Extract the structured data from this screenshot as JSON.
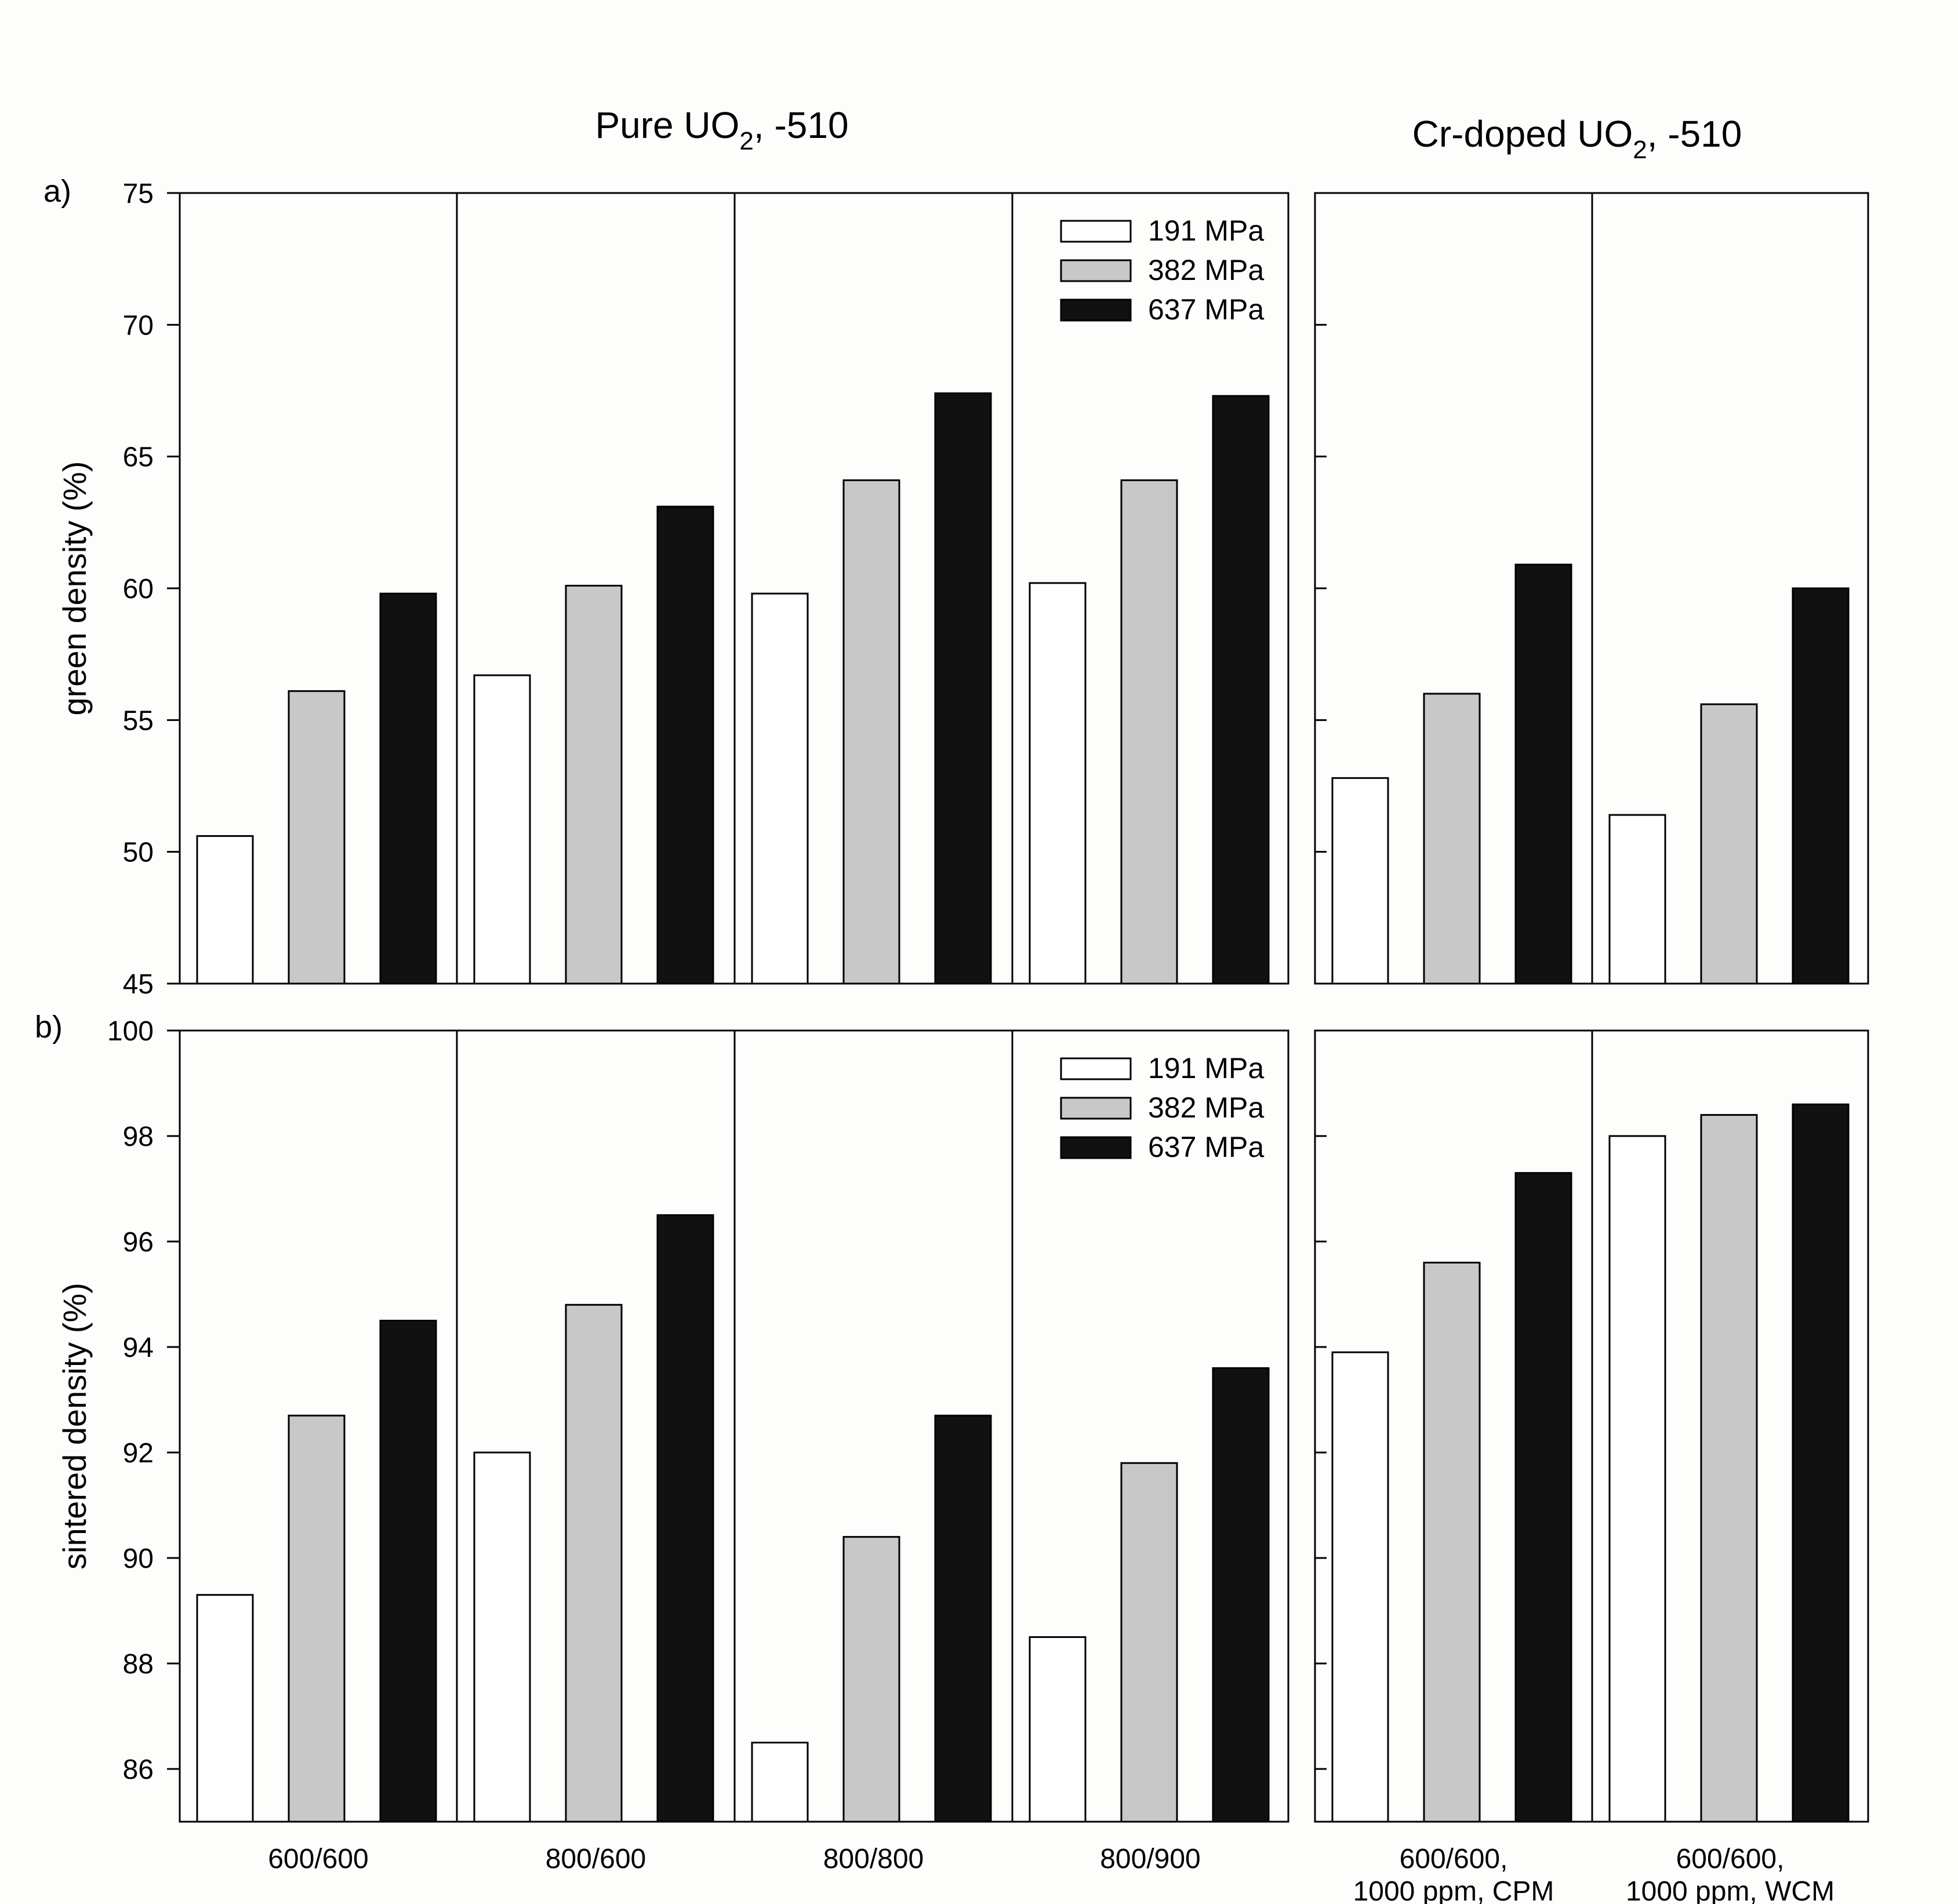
{
  "titles": {
    "pure": {
      "prefix": "Pure UO",
      "sub": "2",
      "suffix": ", -510"
    },
    "cr": {
      "prefix": "Cr-doped UO",
      "sub": "2",
      "suffix": ", -510"
    }
  },
  "panel_labels": {
    "a": "a)",
    "b": "b)"
  },
  "colors": {
    "191 MPa": "#ffffff",
    "382 MPa": "#c8c8c8",
    "637 MPa": "#111111",
    "frame": "#000000"
  },
  "chart_data": [
    {
      "type": "bar",
      "panel": "a)",
      "ylabel": "green density (%)",
      "ylim": [
        45,
        75
      ],
      "yticks": [
        45,
        50,
        55,
        60,
        65,
        70,
        75
      ],
      "legend": "top-right",
      "categories": [
        "600/600",
        "800/600",
        "800/800",
        "800/900",
        "600/600,\n1000 ppm, CPM",
        "600/600,\n1000 ppm, WCM"
      ],
      "series": [
        {
          "name": "191 MPa",
          "values": [
            50.6,
            56.7,
            59.8,
            60.2,
            52.8,
            51.4
          ]
        },
        {
          "name": "382 MPa",
          "values": [
            56.1,
            60.1,
            64.1,
            64.1,
            56.0,
            55.6
          ]
        },
        {
          "name": "637 MPa",
          "values": [
            59.8,
            63.1,
            67.4,
            67.3,
            60.9,
            60.0
          ]
        }
      ]
    },
    {
      "type": "bar",
      "panel": "b)",
      "ylabel": "sintered density (%)",
      "ylim": [
        85,
        100
      ],
      "yticks": [
        86,
        88,
        90,
        92,
        94,
        96,
        98,
        100
      ],
      "legend": "top-right",
      "categories": [
        "600/600",
        "800/600",
        "800/800",
        "800/900",
        "600/600,\n1000 ppm, CPM",
        "600/600,\n1000 ppm, WCM"
      ],
      "series": [
        {
          "name": "191 MPa",
          "values": [
            89.3,
            92.0,
            86.5,
            88.5,
            93.9,
            98.0
          ]
        },
        {
          "name": "382 MPa",
          "values": [
            92.7,
            94.8,
            90.4,
            91.8,
            95.6,
            98.4
          ]
        },
        {
          "name": "637 MPa",
          "values": [
            94.5,
            96.5,
            92.7,
            93.6,
            97.3,
            98.6
          ]
        }
      ]
    }
  ]
}
